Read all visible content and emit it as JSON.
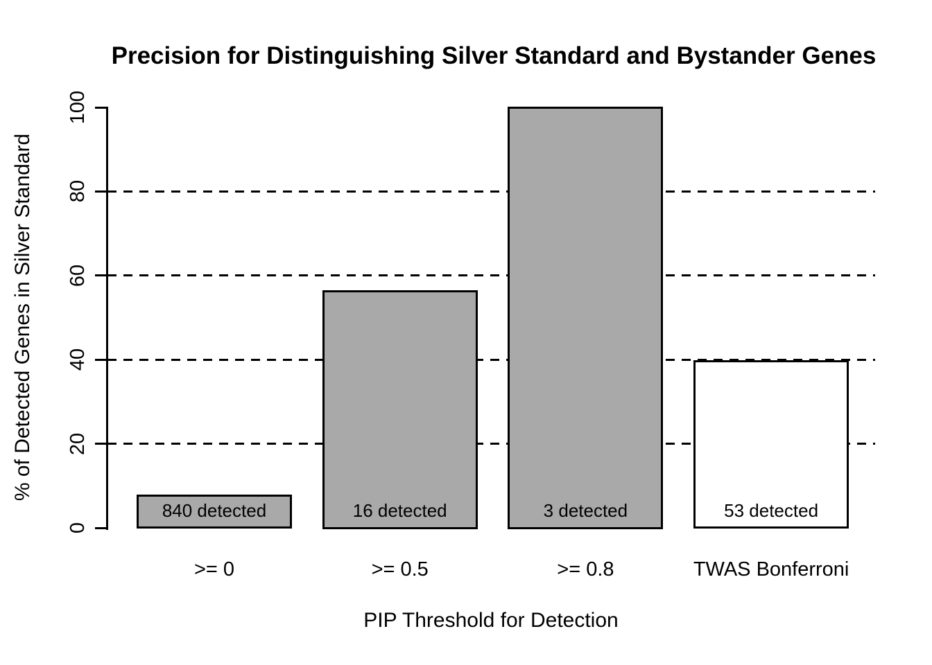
{
  "chart_data": {
    "type": "bar",
    "title": "Precision for Distinguishing Silver Standard and Bystander Genes",
    "xlabel": "PIP Threshold for Detection",
    "ylabel": "% of Detected Genes in Silver Standard",
    "categories": [
      ">= 0",
      ">= 0.5",
      ">= 0.8",
      "TWAS Bonferroni"
    ],
    "values": [
      7.7,
      56.25,
      100,
      39.6
    ],
    "bar_labels": [
      "840 detected",
      "16 detected",
      "3 detected",
      "53 detected"
    ],
    "bar_colors": [
      "#a9a9a9",
      "#a9a9a9",
      "#a9a9a9",
      "#ffffff"
    ],
    "ylim": [
      0,
      100
    ],
    "yticks": [
      0,
      20,
      40,
      60,
      80,
      100
    ],
    "gridlines": [
      20,
      40,
      60,
      80
    ],
    "grid_style": "dashed",
    "legend": "none",
    "background_color": "#ffffff",
    "bar_border_color": "#000000",
    "axis_color": "#000000"
  }
}
